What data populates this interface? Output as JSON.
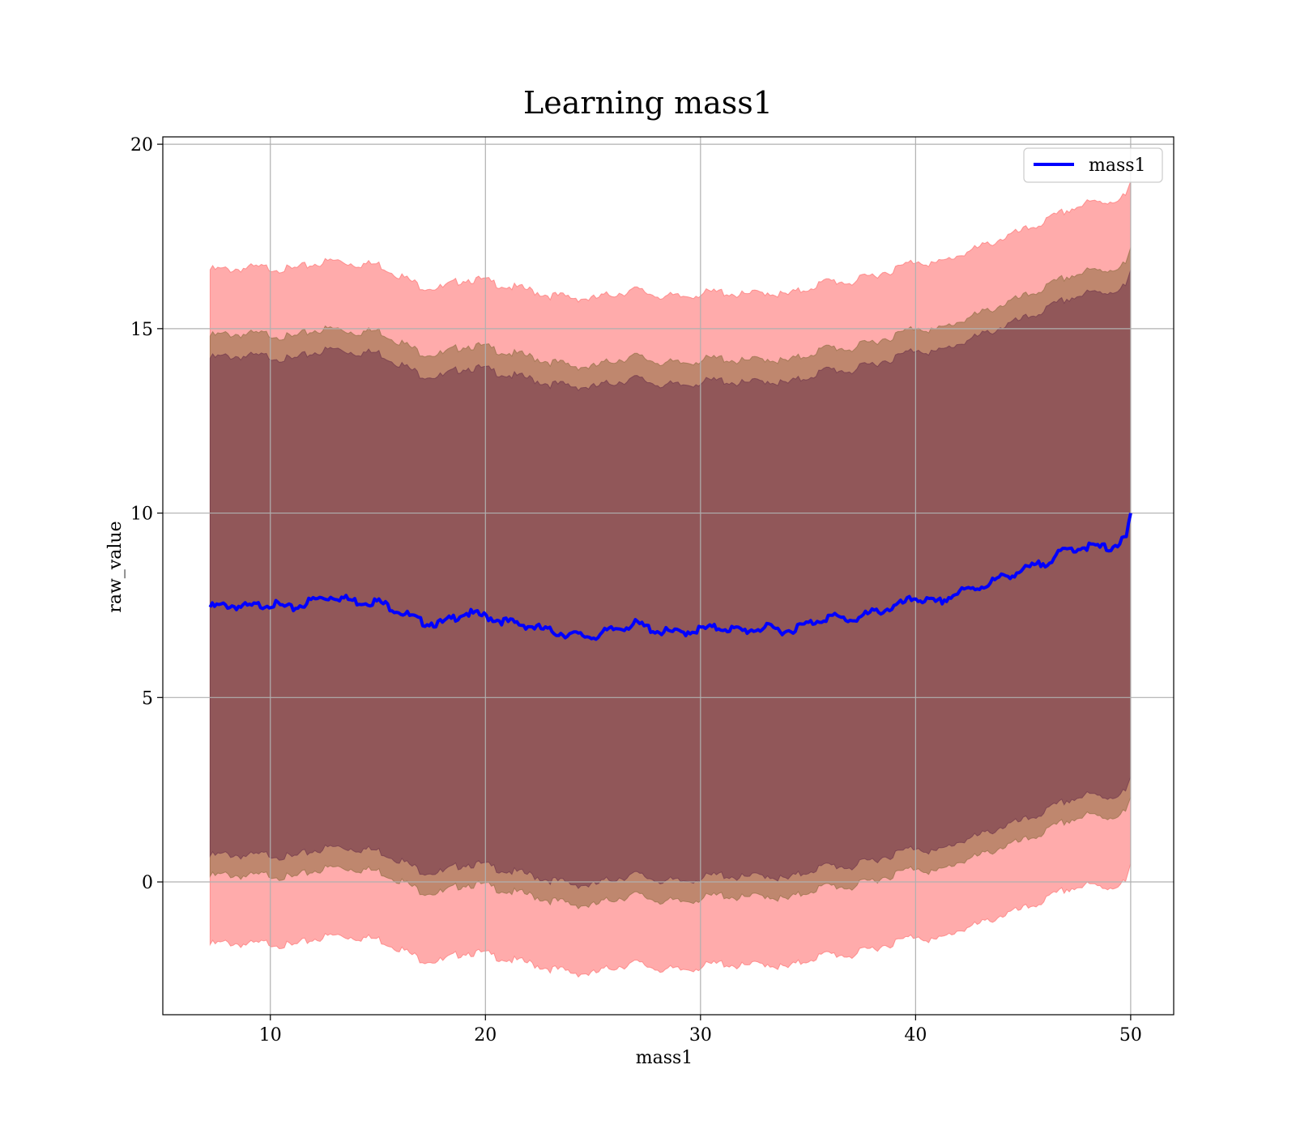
{
  "chart_data": {
    "type": "line",
    "title": "Learning mass1",
    "xlabel": "mass1",
    "ylabel": "raw_value",
    "xlim": [
      5,
      52
    ],
    "ylim": [
      -3.6,
      20.2
    ],
    "xticks": [
      10,
      20,
      30,
      40,
      50
    ],
    "yticks": [
      0,
      5,
      10,
      15,
      20
    ],
    "grid": true,
    "legend": {
      "placement": "top-right",
      "entries": [
        {
          "label": "mass1",
          "color": "#0000ff"
        }
      ]
    },
    "series": [
      {
        "name": "mass1",
        "type": "line",
        "color": "#0000ff",
        "x": [
          7.2,
          8,
          9,
          10,
          11,
          12,
          13,
          14,
          15,
          16,
          17,
          18,
          19,
          20,
          21,
          22,
          23,
          24,
          25,
          26,
          27,
          28,
          29,
          30,
          31,
          32,
          33,
          34,
          35,
          36,
          37,
          38,
          39,
          40,
          41,
          42,
          43,
          44,
          45,
          46,
          47,
          48,
          49,
          49.8,
          50
        ],
        "y": [
          7.45,
          7.5,
          7.45,
          7.55,
          7.4,
          7.65,
          7.75,
          7.6,
          7.6,
          7.35,
          7.05,
          7.0,
          7.3,
          7.2,
          7.05,
          6.95,
          6.8,
          6.7,
          6.65,
          6.85,
          7.0,
          6.8,
          6.75,
          6.85,
          6.9,
          6.8,
          6.9,
          6.8,
          7.0,
          7.2,
          7.1,
          7.3,
          7.45,
          7.7,
          7.55,
          7.85,
          8.0,
          8.25,
          8.45,
          8.65,
          9.0,
          9.1,
          9.05,
          9.3,
          10.0
        ]
      }
    ],
    "bands": [
      {
        "name": "",
        "color": "#ff6666",
        "opacity": 0.55,
        "x": [
          7.2,
          8,
          9,
          10,
          11,
          12,
          13,
          14,
          15,
          16,
          17,
          18,
          19,
          20,
          21,
          22,
          23,
          24,
          25,
          26,
          27,
          28,
          29,
          30,
          31,
          32,
          33,
          34,
          35,
          36,
          37,
          38,
          39,
          40,
          41,
          42,
          43,
          44,
          45,
          46,
          47,
          48,
          49,
          49.8,
          50
        ],
        "upper": [
          16.6,
          16.6,
          16.65,
          16.65,
          16.6,
          16.75,
          16.85,
          16.75,
          16.75,
          16.45,
          16.15,
          16.1,
          16.35,
          16.3,
          16.15,
          16.05,
          15.9,
          15.85,
          15.8,
          15.95,
          16.05,
          15.9,
          15.85,
          15.95,
          16.0,
          15.9,
          16.0,
          15.9,
          16.1,
          16.3,
          16.25,
          16.45,
          16.6,
          16.85,
          16.75,
          17.0,
          17.2,
          17.45,
          17.65,
          17.9,
          18.2,
          18.4,
          18.45,
          18.6,
          19.0
        ],
        "lower": [
          -1.7,
          -1.65,
          -1.7,
          -1.65,
          -1.75,
          -1.55,
          -1.45,
          -1.5,
          -1.55,
          -1.8,
          -2.1,
          -2.15,
          -1.9,
          -1.95,
          -2.1,
          -2.2,
          -2.35,
          -2.45,
          -2.5,
          -2.3,
          -2.2,
          -2.35,
          -2.4,
          -2.3,
          -2.2,
          -2.3,
          -2.2,
          -2.35,
          -2.1,
          -1.95,
          -2.0,
          -1.8,
          -1.65,
          -1.45,
          -1.6,
          -1.3,
          -1.15,
          -0.9,
          -0.75,
          -0.5,
          -0.2,
          -0.1,
          -0.15,
          0.0,
          0.5
        ]
      },
      {
        "name": "",
        "color": "#8b6a3d",
        "opacity": 0.55,
        "x": [
          7.2,
          8,
          9,
          10,
          11,
          12,
          13,
          14,
          15,
          16,
          17,
          18,
          19,
          20,
          21,
          22,
          23,
          24,
          25,
          26,
          27,
          28,
          29,
          30,
          31,
          32,
          33,
          34,
          35,
          36,
          37,
          38,
          39,
          40,
          41,
          42,
          43,
          44,
          45,
          46,
          47,
          48,
          49,
          49.8,
          50
        ],
        "upper": [
          14.8,
          14.85,
          14.85,
          14.85,
          14.75,
          14.95,
          15.0,
          14.9,
          14.95,
          14.65,
          14.35,
          14.3,
          14.55,
          14.5,
          14.35,
          14.25,
          14.1,
          14.0,
          13.95,
          14.15,
          14.25,
          14.1,
          14.05,
          14.15,
          14.2,
          14.1,
          14.2,
          14.1,
          14.3,
          14.5,
          14.45,
          14.65,
          14.8,
          15.05,
          14.95,
          15.2,
          15.4,
          15.65,
          15.85,
          16.1,
          16.4,
          16.55,
          16.6,
          16.75,
          17.2
        ],
        "lower": [
          0.15,
          0.2,
          0.15,
          0.2,
          0.1,
          0.3,
          0.4,
          0.35,
          0.3,
          0.05,
          -0.25,
          -0.3,
          -0.05,
          -0.1,
          -0.25,
          -0.35,
          -0.5,
          -0.6,
          -0.65,
          -0.45,
          -0.35,
          -0.5,
          -0.55,
          -0.45,
          -0.35,
          -0.45,
          -0.35,
          -0.5,
          -0.25,
          -0.1,
          -0.15,
          0.05,
          0.2,
          0.4,
          0.25,
          0.55,
          0.7,
          0.95,
          1.1,
          1.35,
          1.65,
          1.8,
          1.75,
          1.9,
          2.3
        ]
      },
      {
        "name": "",
        "color": "#6b3049",
        "opacity": 0.55,
        "x": [
          7.2,
          8,
          9,
          10,
          11,
          12,
          13,
          14,
          15,
          16,
          17,
          18,
          19,
          20,
          21,
          22,
          23,
          24,
          25,
          26,
          27,
          28,
          29,
          30,
          31,
          32,
          33,
          34,
          35,
          36,
          37,
          38,
          39,
          40,
          41,
          42,
          43,
          44,
          45,
          46,
          47,
          48,
          49,
          49.8,
          50
        ],
        "upper": [
          14.2,
          14.25,
          14.25,
          14.25,
          14.15,
          14.35,
          14.45,
          14.35,
          14.35,
          14.05,
          13.75,
          13.7,
          13.95,
          13.9,
          13.75,
          13.65,
          13.5,
          13.45,
          13.4,
          13.55,
          13.65,
          13.5,
          13.45,
          13.55,
          13.6,
          13.5,
          13.6,
          13.5,
          13.7,
          13.9,
          13.85,
          14.05,
          14.2,
          14.45,
          14.35,
          14.6,
          14.8,
          15.05,
          15.25,
          15.5,
          15.8,
          15.95,
          16.0,
          16.15,
          16.6
        ],
        "lower": [
          0.7,
          0.75,
          0.7,
          0.75,
          0.65,
          0.85,
          0.95,
          0.9,
          0.85,
          0.6,
          0.3,
          0.25,
          0.5,
          0.45,
          0.3,
          0.2,
          0.05,
          -0.05,
          -0.1,
          0.1,
          0.2,
          0.05,
          0.0,
          0.1,
          0.2,
          0.1,
          0.2,
          0.05,
          0.3,
          0.45,
          0.4,
          0.6,
          0.75,
          0.95,
          0.8,
          1.1,
          1.25,
          1.5,
          1.65,
          1.9,
          2.2,
          2.35,
          2.3,
          2.45,
          2.85
        ]
      }
    ]
  }
}
